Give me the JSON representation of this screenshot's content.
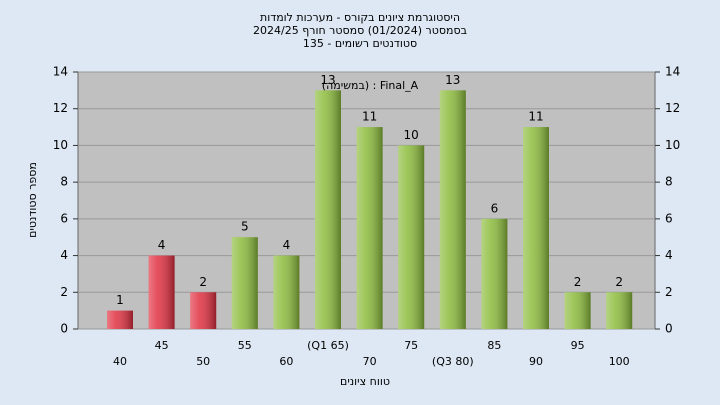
{
  "chart_data": {
    "type": "bar",
    "title": "היסטוגרמת ציונים בקורס - מערכות לומדות",
    "subtitle": "בסמסטר  (01/2024)  סמסטר חורף 2024/25",
    "subtitle2": "סטודנטים רשומים - 135",
    "annotation": "(במשימה) : Final_A",
    "x_label": "טווח ציונים",
    "y_label": "מספר סטודנטים",
    "categories": [
      "40",
      "45",
      "50",
      "55",
      "60",
      "(Q1 65)",
      "70",
      "75",
      "(Q3 80)",
      "85",
      "90",
      "95",
      "100"
    ],
    "values": [
      1,
      4,
      2,
      5,
      4,
      13,
      11,
      10,
      13,
      6,
      11,
      2,
      2
    ],
    "colors": [
      "#e03040",
      "#e03040",
      "#e03040",
      "#8cbc3c",
      "#8cbc3c",
      "#8cbc3c",
      "#8cbc3c",
      "#8cbc3c",
      "#8cbc3c",
      "#8cbc3c",
      "#8cbc3c",
      "#8cbc3c",
      "#8cbc3c"
    ],
    "ylim": [
      0,
      14
    ],
    "yticks": [
      0,
      2,
      4,
      6,
      8,
      10,
      12,
      14
    ],
    "grid": true
  }
}
